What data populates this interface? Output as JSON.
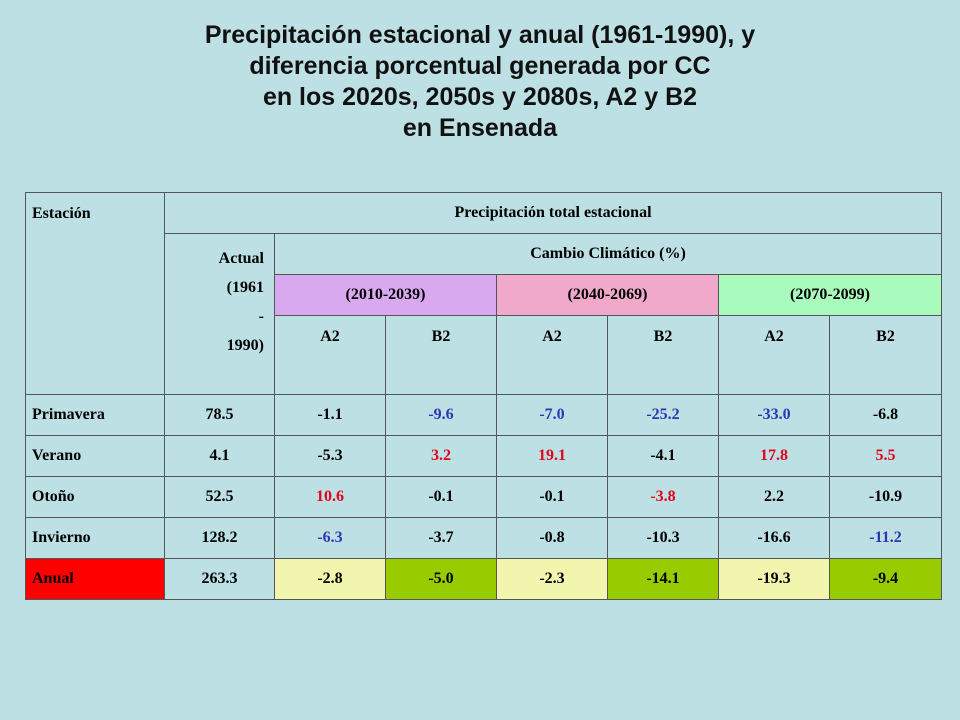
{
  "title": {
    "line1": "Precipitación estacional y anual (1961-1990), y",
    "line2": "diferencia porcentual generada por CC",
    "line3": "en los 2020s, 2050s y 2080s, A2 y B2",
    "line4": "en Ensenada"
  },
  "table": {
    "station_header": "Estación",
    "precip_header": "Precipitación total estacional",
    "actual_header": [
      "Actual",
      "(1961",
      "-",
      "1990)"
    ],
    "cc_header": "Cambio Climático (%)",
    "periods": [
      "(2010-2039)",
      "(2040-2069)",
      "(2070-2099)"
    ],
    "scenarios": [
      "A2",
      "B2",
      "A2",
      "B2",
      "A2",
      "B2"
    ],
    "rows": [
      {
        "station": "Primavera",
        "actual": "78.5",
        "values": [
          "-1.1",
          "-9.6",
          "-7.0",
          "-25.2",
          "-33.0",
          "-6.8"
        ],
        "colors": [
          "black",
          "blue",
          "blue",
          "blue",
          "blue",
          "black"
        ]
      },
      {
        "station": "Verano",
        "actual": "4.1",
        "values": [
          "-5.3",
          "3.2",
          "19.1",
          "-4.1",
          "17.8",
          "5.5"
        ],
        "colors": [
          "black",
          "red",
          "red",
          "black",
          "red",
          "red"
        ]
      },
      {
        "station": "Otoño",
        "actual": "52.5",
        "values": [
          "10.6",
          "-0.1",
          "-0.1",
          "-3.8",
          "2.2",
          "-10.9"
        ],
        "colors": [
          "red",
          "black",
          "black",
          "red",
          "black",
          "black"
        ]
      },
      {
        "station": "Invierno",
        "actual": "128.2",
        "values": [
          "-6.3",
          "-3.7",
          "-0.8",
          "-10.3",
          "-16.6",
          "-11.2"
        ],
        "colors": [
          "blue",
          "black",
          "black",
          "black",
          "black",
          "blue"
        ]
      }
    ],
    "annual": {
      "station": "Anual",
      "actual": "263.3",
      "values": [
        "-2.8",
        "-5.0",
        "-2.3",
        "-14.1",
        "-19.3",
        "-9.4"
      ]
    },
    "colors": {
      "period_1": "#d9a9f0",
      "period_2": "#f0a9cb",
      "period_3": "#a9fbbd",
      "annual_label": "#ff0000",
      "annual_a2": "#f2f5ad",
      "annual_b2": "#99cc00",
      "text_blue": "#2e35b3",
      "text_red": "#e3001b",
      "background": "#bde0e4"
    }
  }
}
